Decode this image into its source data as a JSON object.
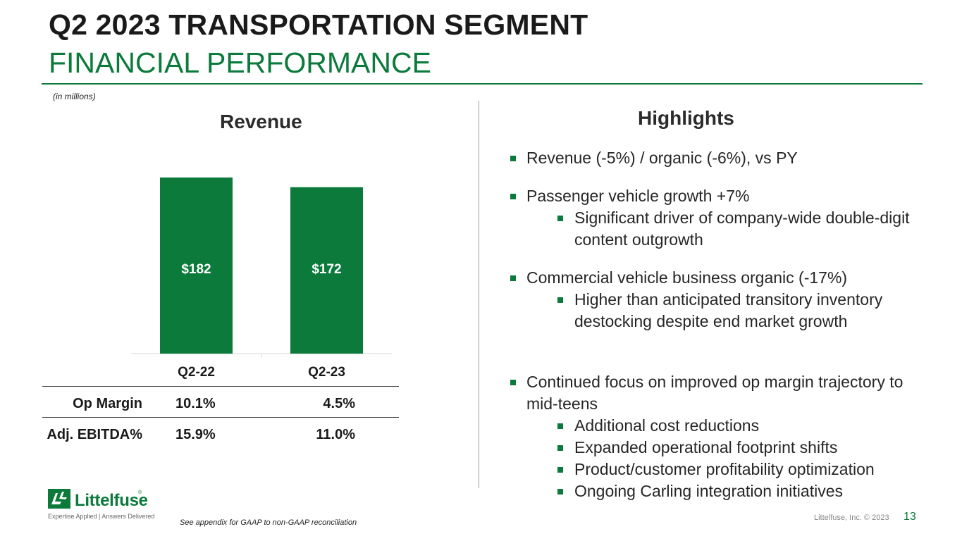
{
  "header": {
    "title": "Q2 2023 TRANSPORTATION SEGMENT",
    "subtitle": "FINANCIAL PERFORMANCE",
    "units": "(in millions)"
  },
  "colors": {
    "accent": "#0b7a3b",
    "text": "#1a1a1a"
  },
  "chart_data": {
    "type": "bar",
    "title": "Revenue",
    "categories": [
      "Q2-22",
      "Q2-23"
    ],
    "values": [
      182,
      172
    ],
    "labels": [
      "$182",
      "$172"
    ],
    "ylim": [
      0,
      182
    ],
    "xlabel": "",
    "ylabel": ""
  },
  "metrics": {
    "rows": [
      {
        "label": "Op Margin",
        "q2_22": "10.1%",
        "q2_23": "4.5%"
      },
      {
        "label": "Adj. EBITDA%",
        "q2_22": "15.9%",
        "q2_23": "11.0%"
      }
    ]
  },
  "highlights": {
    "title": "Highlights",
    "b1": "Revenue (-5%) / organic (-6%), vs PY",
    "b2": "Passenger vehicle growth +7%",
    "b2a": "Significant driver of company-wide double-digit content outgrowth",
    "b3": "Commercial vehicle business organic (-17%)",
    "b3a": "Higher than anticipated transitory inventory destocking despite end market growth",
    "b4": "Continued focus on improved op margin trajectory to mid-teens",
    "b4a": "Additional cost reductions",
    "b4b": "Expanded operational footprint shifts",
    "b4c": "Product/customer profitability optimization",
    "b4d": "Ongoing Carling integration initiatives"
  },
  "footer": {
    "logo_text": "Littelfuse",
    "logo_reg": "®",
    "tagline": "Expertise Applied | Answers Delivered",
    "note": "See appendix for GAAP to non-GAAP reconciliation",
    "copyright": "Littelfuse, Inc. © 2023",
    "page": "13"
  }
}
